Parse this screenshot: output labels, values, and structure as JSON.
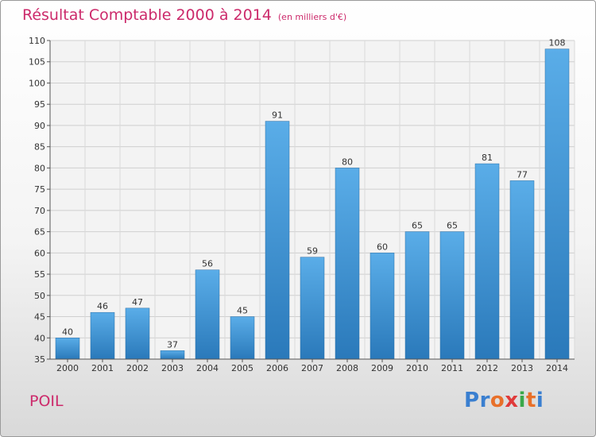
{
  "header": {
    "title": "Résultat Comptable 2000 à 2014",
    "unit": "(en milliers d'€)"
  },
  "footer": {
    "commune": "POIL",
    "logo": [
      "P",
      "r",
      "o",
      "x",
      "i",
      "t",
      "i"
    ],
    "logo_colors": [
      "#3a7fd0",
      "#3a7fd0",
      "#e8702a",
      "#e03a3a",
      "#3aa84a",
      "#e8702a",
      "#3a7fd0"
    ]
  },
  "chart_data": {
    "type": "bar",
    "title": "Résultat Comptable 2000 à 2014",
    "subtitle": "(en milliers d'€)",
    "categories": [
      "2000",
      "2001",
      "2002",
      "2003",
      "2004",
      "2005",
      "2006",
      "2007",
      "2008",
      "2009",
      "2010",
      "2011",
      "2012",
      "2013",
      "2014"
    ],
    "values": [
      40,
      46,
      47,
      37,
      56,
      45,
      91,
      59,
      80,
      60,
      65,
      65,
      81,
      77,
      108
    ],
    "ylim": [
      35,
      110
    ],
    "yticks": [
      35,
      40,
      45,
      50,
      55,
      60,
      65,
      70,
      75,
      80,
      85,
      90,
      95,
      100,
      105,
      110
    ],
    "grid": true,
    "bar_color_top": "#5aade8",
    "bar_color_bottom": "#2a79ba"
  }
}
